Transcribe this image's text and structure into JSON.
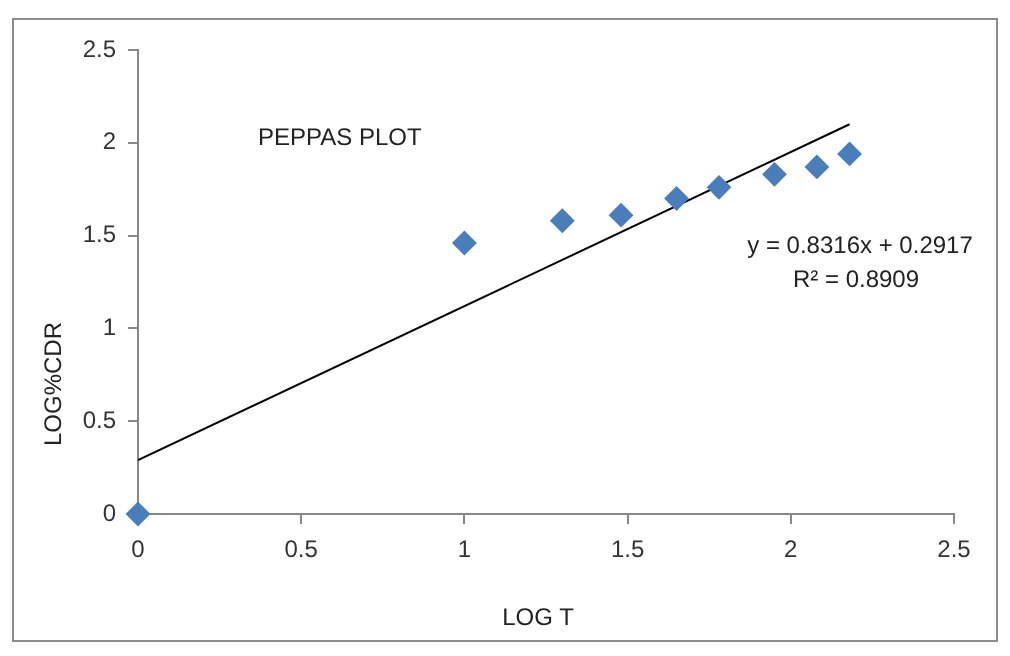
{
  "chart_data": {
    "type": "scatter",
    "title": "PEPPAS PLOT",
    "xlabel": "LOG T",
    "ylabel": "LOG%CDR",
    "annotations": [
      "y = 0.8316x + 0.2917",
      "R² = 0.8909"
    ],
    "x": [
      0,
      1.0,
      1.3,
      1.48,
      1.65,
      1.78,
      1.95,
      2.08,
      2.18
    ],
    "series": [
      {
        "color": "#4a7ebb",
        "marker": "diamond",
        "values": [
          0,
          1.46,
          1.58,
          1.61,
          1.7,
          1.76,
          1.83,
          1.87,
          1.94
        ]
      },
      {
        "type": "line",
        "color": "#000000",
        "line_style": "solid",
        "marker": "none",
        "x": [
          0,
          2.18
        ],
        "values": [
          0.29,
          2.1
        ]
      }
    ],
    "xlim": [
      0,
      2.5
    ],
    "xticks": [
      0,
      0.5,
      1,
      1.5,
      2,
      2.5
    ],
    "ylim": [
      0,
      2.5
    ],
    "yticks": [
      0,
      0.5,
      1,
      1.5,
      2,
      2.5
    ],
    "grid": false,
    "legend": false
  }
}
